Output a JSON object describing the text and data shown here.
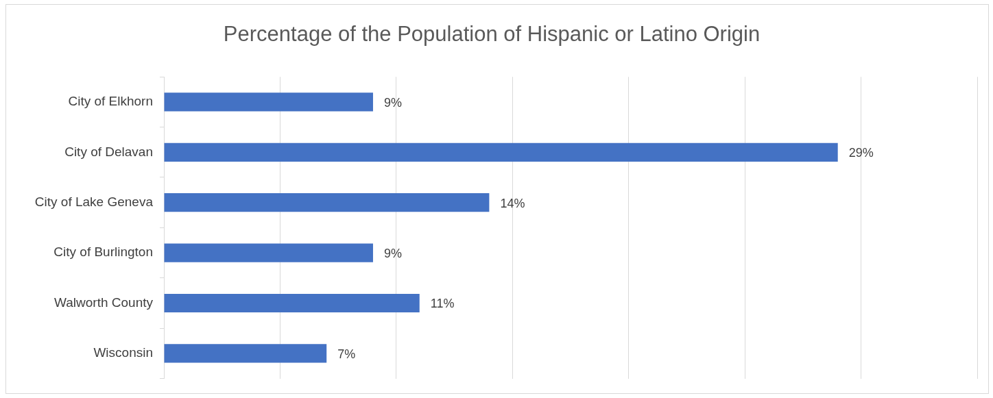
{
  "chart_data": {
    "type": "bar",
    "orientation": "horizontal",
    "title": "Percentage of the Population of Hispanic or Latino Origin",
    "categories": [
      "City of Elkhorn",
      "City of Delavan",
      "City of Lake Geneva",
      "City of Burlington",
      "Walworth County",
      "Wisconsin"
    ],
    "values": [
      9,
      29,
      14,
      9,
      11,
      7
    ],
    "value_labels": [
      "9%",
      "29%",
      "14%",
      "9%",
      "11%",
      "7%"
    ],
    "color": "#4472c4",
    "xlim": [
      0,
      35
    ],
    "xticks": [
      {
        "value": 0,
        "label": null
      },
      {
        "value": 5,
        "label": null
      },
      {
        "value": 10,
        "label": null
      },
      {
        "value": 15,
        "label": null
      },
      {
        "value": 20,
        "label": null
      },
      {
        "value": 25,
        "label": null
      },
      {
        "value": 30,
        "label": null
      },
      {
        "value": 35,
        "label": null
      }
    ],
    "grid": "x",
    "tick_labels": "y"
  }
}
